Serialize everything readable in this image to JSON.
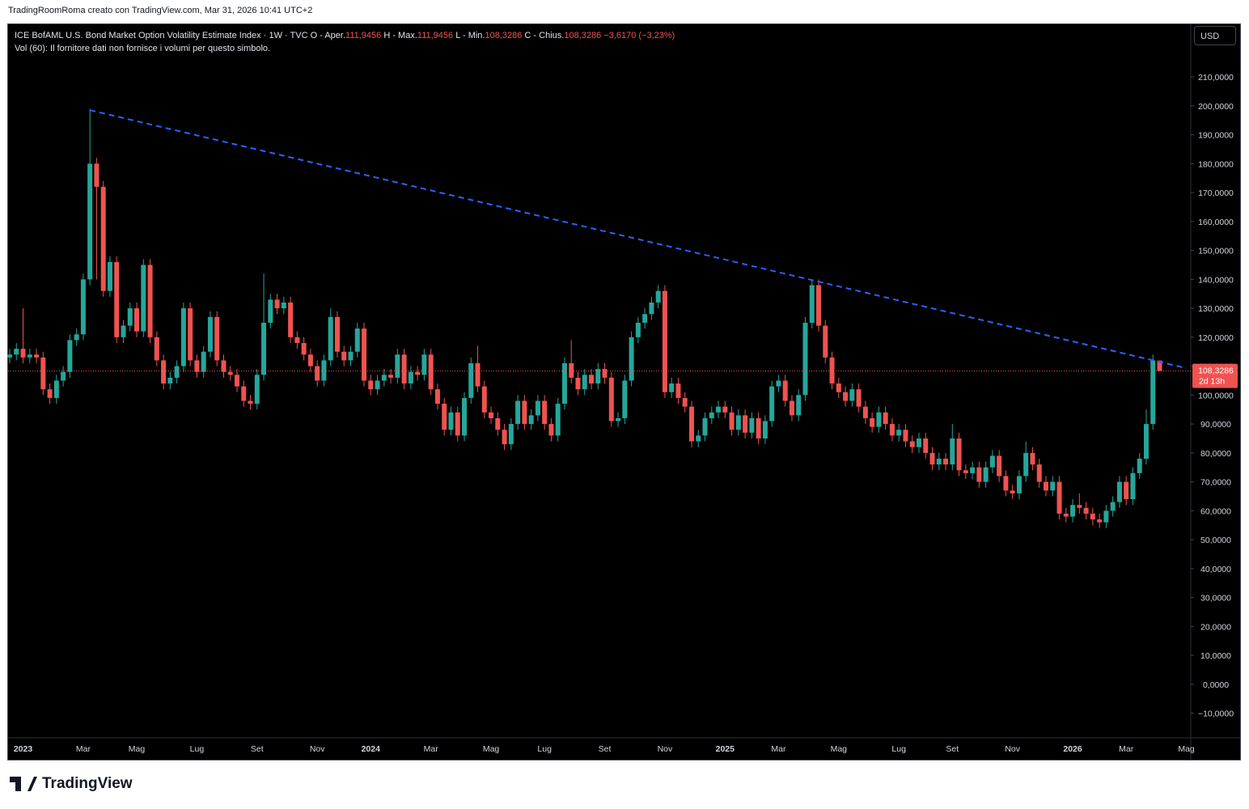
{
  "attribution": "TradingRoomRoma creato con TradingView.com, Mar 31, 2026 10:41 UTC+2",
  "legend": {
    "symbol": "ICE BofAML U.S. Bond Market Option Volatility Estimate Index · 1W · TVC",
    "fields": [
      {
        "label": "O - Aper.",
        "value": "111,9456"
      },
      {
        "label": "H - Max.",
        "value": "111,9456"
      },
      {
        "label": "L - Min.",
        "value": "108,3286"
      },
      {
        "label": "C - Chius.",
        "value": "108,3286"
      }
    ],
    "change": "−3,6170 (−3,23%)",
    "volume": "Vol (60): Il fornitore dati non fornisce i volumi per questo simbolo."
  },
  "currency": "USD",
  "brand": "TradingView",
  "chart_data": {
    "type": "candlestick",
    "up_color": "#26a69a",
    "down_color": "#ef5350",
    "categories": [
      null,
      null,
      "2023",
      null,
      null,
      null,
      null,
      null,
      null,
      null,
      null,
      "Mar",
      null,
      null,
      null,
      null,
      null,
      null,
      null,
      "Mag",
      null,
      null,
      null,
      null,
      null,
      null,
      null,
      null,
      "Lug",
      null,
      null,
      null,
      null,
      null,
      null,
      null,
      null,
      "Set",
      null,
      null,
      null,
      null,
      null,
      null,
      null,
      null,
      "Nov",
      null,
      null,
      null,
      null,
      null,
      null,
      null,
      "2024",
      null,
      null,
      null,
      null,
      null,
      null,
      null,
      null,
      "Mar",
      null,
      null,
      null,
      null,
      null,
      null,
      null,
      null,
      "Mag",
      null,
      null,
      null,
      null,
      null,
      null,
      null,
      "Lug",
      null,
      null,
      null,
      null,
      null,
      null,
      null,
      null,
      "Set",
      null,
      null,
      null,
      null,
      null,
      null,
      null,
      null,
      "Nov",
      null,
      null,
      null,
      null,
      null,
      null,
      null,
      null,
      "2025",
      null,
      null,
      null,
      null,
      null,
      null,
      null,
      "Mar",
      null,
      null,
      null,
      null,
      null,
      null,
      null,
      null,
      "Mag",
      null,
      null,
      null,
      null,
      null,
      null,
      null,
      null,
      "Lug",
      null,
      null,
      null,
      null,
      null,
      null,
      null,
      "Set",
      null,
      null,
      null,
      null,
      null,
      null,
      null,
      null,
      "Nov",
      null,
      null,
      null,
      null,
      null,
      null,
      null,
      null,
      "2026",
      null,
      null,
      null,
      null,
      null,
      null,
      null,
      "Mar",
      null,
      null,
      null,
      null,
      null,
      null,
      null,
      null,
      "Mag"
    ],
    "open": [
      113,
      114,
      116,
      113,
      114,
      113,
      102,
      99,
      105,
      108,
      119,
      121,
      140,
      180,
      172,
      136,
      146,
      120,
      124,
      130,
      122,
      145,
      120,
      112,
      104,
      106,
      110,
      130,
      112,
      108,
      115,
      127,
      112,
      108,
      107,
      103,
      98,
      97,
      107,
      125,
      133,
      130,
      132,
      120,
      118,
      114,
      110,
      105,
      112,
      127,
      115,
      112,
      115,
      123,
      105,
      102,
      105,
      107,
      106,
      114,
      104,
      108,
      107,
      114,
      102,
      97,
      88,
      94,
      86,
      99,
      111,
      103,
      94,
      92,
      88,
      83,
      90,
      98,
      90,
      93,
      98,
      90,
      86,
      97,
      111,
      106,
      102,
      107,
      104,
      109,
      106,
      91,
      92,
      105,
      120,
      125,
      128,
      132,
      136,
      101,
      104,
      99,
      96,
      84,
      86,
      92,
      94,
      96,
      94,
      88,
      93,
      87,
      92,
      85,
      91,
      103,
      105,
      98,
      93,
      100,
      125,
      138,
      124,
      113,
      104,
      101,
      98,
      102,
      96,
      92,
      89,
      94,
      90,
      86,
      88,
      84,
      82,
      85,
      80,
      76,
      78,
      76,
      85,
      74,
      73,
      75,
      70,
      75,
      79,
      72,
      67,
      66,
      72,
      80,
      76,
      70,
      67,
      70,
      59,
      58,
      62,
      61,
      59,
      57,
      56,
      60,
      63,
      70,
      64,
      73,
      78,
      90,
      111.9456,
      null,
      null,
      null,
      null
    ],
    "high": [
      116,
      118,
      130,
      116,
      116,
      115,
      104,
      107,
      110,
      121,
      123,
      142,
      199,
      182,
      174,
      148,
      148,
      126,
      132,
      132,
      147,
      147,
      122,
      114,
      108,
      112,
      132,
      132,
      114,
      117,
      129,
      129,
      114,
      110,
      109,
      105,
      100,
      109,
      142,
      135,
      135,
      134,
      134,
      122,
      120,
      116,
      112,
      114,
      130,
      129,
      117,
      117,
      125,
      125,
      107,
      107,
      109,
      109,
      116,
      116,
      110,
      110,
      116,
      116,
      104,
      99,
      96,
      96,
      101,
      113,
      117,
      105,
      96,
      94,
      90,
      92,
      100,
      100,
      95,
      100,
      100,
      92,
      99,
      113,
      119,
      108,
      109,
      109,
      111,
      111,
      108,
      94,
      107,
      122,
      127,
      130,
      134,
      138,
      138,
      106,
      106,
      101,
      98,
      88,
      94,
      96,
      98,
      98,
      96,
      95,
      95,
      94,
      94,
      93,
      105,
      107,
      107,
      100,
      102,
      127,
      140,
      140,
      126,
      115,
      106,
      103,
      104,
      104,
      98,
      94,
      96,
      96,
      92,
      90,
      90,
      86,
      87,
      87,
      82,
      80,
      80,
      90,
      87,
      76,
      77,
      77,
      77,
      81,
      81,
      74,
      69,
      74,
      84,
      82,
      78,
      72,
      72,
      72,
      61,
      64,
      66,
      63,
      61,
      59,
      62,
      65,
      72,
      72,
      75,
      80,
      95,
      114,
      111.9456,
      null,
      null,
      null,
      null
    ],
    "low": [
      111,
      112,
      111,
      111,
      111,
      100,
      97,
      97,
      103,
      106,
      117,
      119,
      138,
      140,
      134,
      134,
      118,
      118,
      122,
      120,
      120,
      118,
      110,
      102,
      102,
      104,
      108,
      110,
      106,
      106,
      113,
      110,
      106,
      105,
      101,
      96,
      95,
      95,
      105,
      123,
      128,
      128,
      118,
      116,
      112,
      108,
      103,
      103,
      110,
      113,
      110,
      110,
      113,
      103,
      100,
      100,
      103,
      104,
      104,
      102,
      102,
      105,
      105,
      100,
      95,
      86,
      86,
      84,
      84,
      97,
      101,
      92,
      90,
      86,
      81,
      81,
      88,
      88,
      88,
      91,
      88,
      84,
      84,
      95,
      104,
      100,
      100,
      102,
      102,
      104,
      89,
      89,
      90,
      103,
      118,
      123,
      126,
      130,
      99,
      99,
      97,
      94,
      82,
      82,
      84,
      90,
      92,
      92,
      86,
      86,
      85,
      85,
      83,
      83,
      89,
      101,
      96,
      91,
      91,
      98,
      123,
      122,
      111,
      102,
      99,
      96,
      96,
      94,
      90,
      87,
      87,
      88,
      84,
      84,
      82,
      80,
      80,
      78,
      74,
      74,
      74,
      74,
      72,
      71,
      71,
      68,
      68,
      73,
      70,
      65,
      64,
      64,
      70,
      74,
      68,
      65,
      65,
      57,
      56,
      56,
      59,
      57,
      55,
      54,
      54,
      58,
      61,
      62,
      62,
      71,
      76,
      88,
      108.3286,
      null,
      null,
      null,
      null
    ],
    "close": [
      114,
      116,
      113,
      114,
      113,
      102,
      99,
      105,
      108,
      119,
      121,
      140,
      180,
      172,
      136,
      146,
      120,
      124,
      130,
      122,
      145,
      120,
      112,
      104,
      106,
      110,
      130,
      112,
      108,
      115,
      127,
      112,
      108,
      107,
      103,
      98,
      97,
      107,
      125,
      133,
      130,
      132,
      120,
      118,
      114,
      110,
      105,
      112,
      127,
      115,
      112,
      115,
      123,
      105,
      102,
      105,
      107,
      106,
      114,
      104,
      108,
      107,
      114,
      102,
      97,
      88,
      94,
      86,
      99,
      111,
      103,
      94,
      92,
      88,
      83,
      90,
      98,
      90,
      93,
      98,
      90,
      86,
      97,
      111,
      106,
      102,
      107,
      104,
      109,
      106,
      91,
      92,
      105,
      120,
      125,
      128,
      132,
      136,
      101,
      104,
      99,
      96,
      84,
      86,
      92,
      94,
      96,
      94,
      88,
      93,
      87,
      92,
      85,
      91,
      103,
      105,
      98,
      93,
      100,
      125,
      138,
      124,
      113,
      104,
      101,
      98,
      102,
      96,
      92,
      89,
      94,
      90,
      86,
      88,
      84,
      82,
      85,
      80,
      76,
      78,
      76,
      85,
      74,
      73,
      75,
      70,
      75,
      79,
      72,
      67,
      66,
      72,
      80,
      76,
      70,
      67,
      70,
      59,
      58,
      62,
      61,
      59,
      57,
      56,
      60,
      63,
      70,
      64,
      73,
      78,
      90,
      112,
      108.3286,
      null,
      null,
      null,
      null
    ],
    "ylim": [
      -18.5,
      228.2
    ],
    "yticks": [
      {
        "value": -10,
        "label": "−10,0000"
      },
      {
        "value": 0,
        "label": "0,0000"
      },
      {
        "value": 10,
        "label": "10,0000"
      },
      {
        "value": 20,
        "label": "20,0000"
      },
      {
        "value": 30,
        "label": "30,0000"
      },
      {
        "value": 40,
        "label": "40,0000"
      },
      {
        "value": 50,
        "label": "50,0000"
      },
      {
        "value": 60,
        "label": "60,0000"
      },
      {
        "value": 70,
        "label": "70,0000"
      },
      {
        "value": 80,
        "label": "80,0000"
      },
      {
        "value": 90,
        "label": "90,0000"
      },
      {
        "value": 100,
        "label": "100,0000"
      },
      {
        "value": 110,
        "label": "110,0000"
      },
      {
        "value": 120,
        "label": "120,0000"
      },
      {
        "value": 130,
        "label": "130,0000"
      },
      {
        "value": 140,
        "label": "140,0000"
      },
      {
        "value": 150,
        "label": "150,0000"
      },
      {
        "value": 160,
        "label": "160,0000"
      },
      {
        "value": 170,
        "label": "170,0000"
      },
      {
        "value": 180,
        "label": "180,0000"
      },
      {
        "value": 190,
        "label": "190,0000"
      },
      {
        "value": 200,
        "label": "200,0000"
      },
      {
        "value": 210,
        "label": "210,0000"
      }
    ],
    "grid": false,
    "trendline": {
      "color": "#2962ff",
      "start": {
        "index": 12,
        "value": 198.5
      },
      "end": {
        "index": 176,
        "value": 109.3
      }
    },
    "last_price_label": "108,3286",
    "countdown": "2d 13h"
  }
}
